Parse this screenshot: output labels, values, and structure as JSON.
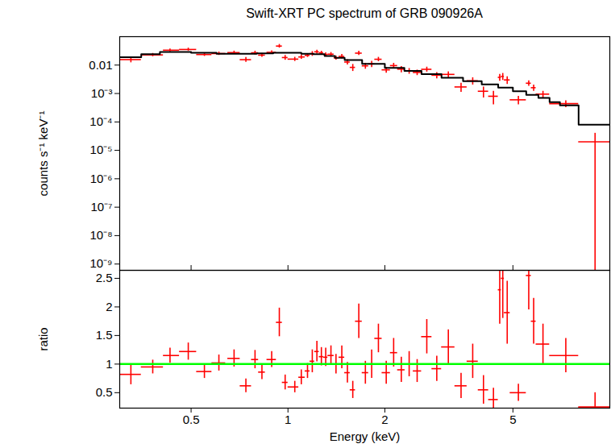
{
  "chart_data": [
    {
      "type": "scatter",
      "title": "Swift-XRT PC spectrum of GRB 090926A",
      "ylabel": "counts s⁻¹ keV⁻¹",
      "log": true,
      "tick_labels": "y",
      "xlim": [
        0.3,
        10
      ],
      "xticks": [
        0.5,
        1,
        2,
        5
      ],
      "ylim": [
        6e-10,
        0.1
      ],
      "yticks": [
        {
          "value": 0.01,
          "label": "0.01"
        },
        {
          "value": 0.001,
          "label": "10⁻³"
        },
        {
          "value": 0.0001,
          "label": "10⁻⁴"
        },
        {
          "value": 1e-05,
          "label": "10⁻⁵"
        },
        {
          "value": 1e-06,
          "label": "10⁻⁶"
        },
        {
          "value": 1e-07,
          "label": "10⁻⁷"
        },
        {
          "value": 1e-08,
          "label": "10⁻⁸"
        },
        {
          "value": 1e-09,
          "label": "10⁻⁹"
        }
      ],
      "series": [
        {
          "type": "scatter",
          "color": "#ff0000",
          "x": [
            0.325,
            0.38,
            0.43,
            0.49,
            0.55,
            0.61,
            0.68,
            0.74,
            0.79,
            0.83,
            0.89,
            0.94,
            0.98,
            1.05,
            1.1,
            1.15,
            1.19,
            1.23,
            1.27,
            1.31,
            1.36,
            1.41,
            1.47,
            1.53,
            1.59,
            1.66,
            1.74,
            1.82,
            1.91,
            2.02,
            2.13,
            2.25,
            2.38,
            2.52,
            2.7,
            2.9,
            3.15,
            3.45,
            3.75,
            4.05,
            4.35,
            4.55,
            4.65,
            4.8,
            5.2,
            5.6,
            5.8,
            6.2,
            7.3,
            9.0
          ],
          "x_low": [
            0.3,
            0.35,
            0.41,
            0.46,
            0.52,
            0.58,
            0.65,
            0.71,
            0.77,
            0.81,
            0.86,
            0.92,
            0.96,
            1.0,
            1.08,
            1.13,
            1.17,
            1.21,
            1.25,
            1.29,
            1.33,
            1.39,
            1.44,
            1.5,
            1.56,
            1.62,
            1.7,
            1.78,
            1.86,
            1.96,
            2.08,
            2.19,
            2.31,
            2.45,
            2.6,
            2.8,
            3.0,
            3.3,
            3.6,
            3.9,
            4.2,
            4.5,
            4.6,
            4.7,
            4.9,
            5.5,
            5.7,
            5.9,
            6.5,
            8.0
          ],
          "x_high": [
            0.35,
            0.41,
            0.46,
            0.52,
            0.58,
            0.64,
            0.71,
            0.77,
            0.81,
            0.85,
            0.92,
            0.96,
            1.0,
            1.08,
            1.13,
            1.17,
            1.21,
            1.25,
            1.29,
            1.33,
            1.39,
            1.44,
            1.5,
            1.56,
            1.62,
            1.7,
            1.78,
            1.86,
            1.96,
            2.08,
            2.19,
            2.31,
            2.45,
            2.6,
            2.8,
            3.0,
            3.3,
            3.6,
            3.9,
            4.2,
            4.5,
            4.6,
            4.7,
            4.9,
            5.5,
            5.7,
            5.9,
            6.5,
            8.0,
            10.0
          ],
          "values": [
            0.0156,
            0.0228,
            0.0334,
            0.0354,
            0.0235,
            0.0255,
            0.0275,
            0.0155,
            0.027,
            0.0224,
            0.0281,
            0.0467,
            0.0184,
            0.0162,
            0.0193,
            0.022,
            0.0252,
            0.0293,
            0.0271,
            0.0235,
            0.0242,
            0.018,
            0.0202,
            0.0128,
            0.0083,
            0.0263,
            0.0094,
            0.011,
            0.016,
            0.0068,
            0.0096,
            0.0072,
            0.0062,
            0.0055,
            0.0071,
            0.0044,
            0.0047,
            0.0017,
            0.0028,
            0.0012,
            0.0008,
            0.0037,
            0.004,
            0.003,
            0.0006,
            0.0023,
            0.0016,
            0.00095,
            0.00044,
            2e-05
          ],
          "errors": [
            0.0035,
            0.003,
            0.0038,
            0.0043,
            0.0032,
            0.0035,
            0.0037,
            0.003,
            0.004,
            0.0034,
            0.0036,
            0.0068,
            0.0035,
            0.0027,
            0.0033,
            0.0033,
            0.0048,
            0.0043,
            0.0038,
            0.0034,
            0.0036,
            0.003,
            0.0036,
            0.0027,
            0.0023,
            0.0045,
            0.0022,
            0.0027,
            0.0028,
            0.0016,
            0.002,
            0.0018,
            0.0014,
            0.0012,
            0.0014,
            0.0011,
            0.0011,
            0.0006,
            0.0008,
            0.0005,
            0.0004,
            0.001,
            0.0011,
            0.0009,
            0.0002,
            0.0005,
            0.0004,
            0.00025,
            0.00012,
            1.99999e-05
          ]
        },
        {
          "type": "line",
          "color": "#000000",
          "line_style": "step",
          "x": [
            0.3,
            0.35,
            0.4,
            0.5,
            0.6,
            0.7,
            0.8,
            0.9,
            1.0,
            1.1,
            1.2,
            1.3,
            1.4,
            1.5,
            1.7,
            2.0,
            2.3,
            2.6,
            3.0,
            3.5,
            4.0,
            4.5,
            5.0,
            5.5,
            6.0,
            6.5,
            7.0,
            8.0,
            10.0
          ],
          "values": [
            0.019,
            0.024,
            0.029,
            0.027,
            0.025,
            0.025,
            0.026,
            0.027,
            0.027,
            0.025,
            0.024,
            0.021,
            0.018,
            0.015,
            0.011,
            0.008,
            0.0062,
            0.0048,
            0.0036,
            0.0027,
            0.0021,
            0.0016,
            0.0012,
            0.0009,
            0.0007,
            0.0005,
            0.00038,
            8e-05,
            8e-05
          ]
        }
      ]
    },
    {
      "type": "scatter",
      "xlabel": "Energy (keV)",
      "ylabel": "ratio",
      "log": "x",
      "xlim": [
        0.3,
        10
      ],
      "xticks": [
        0.5,
        1,
        2,
        5
      ],
      "ylim": [
        0.23,
        2.64
      ],
      "yticks": [
        0.5,
        1,
        1.5,
        2,
        2.5
      ],
      "series": [
        {
          "type": "scatter",
          "color": "#ff0000",
          "x": [
            0.325,
            0.38,
            0.43,
            0.49,
            0.55,
            0.61,
            0.68,
            0.74,
            0.79,
            0.83,
            0.89,
            0.94,
            0.98,
            1.05,
            1.1,
            1.15,
            1.19,
            1.23,
            1.27,
            1.31,
            1.36,
            1.41,
            1.47,
            1.53,
            1.59,
            1.66,
            1.74,
            1.82,
            1.91,
            2.02,
            2.13,
            2.25,
            2.38,
            2.52,
            2.7,
            2.9,
            3.15,
            3.45,
            3.75,
            4.05,
            4.35,
            4.55,
            4.65,
            4.8,
            5.2,
            5.6,
            5.8,
            6.2,
            7.3,
            9.0
          ],
          "x_low": [
            0.3,
            0.35,
            0.41,
            0.46,
            0.52,
            0.58,
            0.65,
            0.71,
            0.77,
            0.81,
            0.86,
            0.92,
            0.96,
            1.0,
            1.08,
            1.13,
            1.17,
            1.21,
            1.25,
            1.29,
            1.33,
            1.39,
            1.44,
            1.5,
            1.56,
            1.62,
            1.7,
            1.78,
            1.86,
            1.96,
            2.08,
            2.19,
            2.31,
            2.45,
            2.6,
            2.8,
            3.0,
            3.3,
            3.6,
            3.9,
            4.2,
            4.5,
            4.6,
            4.7,
            4.9,
            5.5,
            5.7,
            5.9,
            6.5,
            8.0
          ],
          "x_high": [
            0.35,
            0.41,
            0.46,
            0.52,
            0.58,
            0.64,
            0.71,
            0.77,
            0.81,
            0.85,
            0.92,
            0.96,
            1.0,
            1.08,
            1.13,
            1.17,
            1.21,
            1.25,
            1.29,
            1.33,
            1.39,
            1.44,
            1.5,
            1.56,
            1.62,
            1.7,
            1.78,
            1.86,
            1.96,
            2.08,
            2.19,
            2.31,
            2.45,
            2.6,
            2.8,
            3.0,
            3.3,
            3.6,
            3.9,
            4.2,
            4.5,
            4.6,
            4.7,
            4.9,
            5.5,
            5.7,
            5.9,
            6.5,
            8.0,
            10.0
          ],
          "values": [
            0.82,
            0.95,
            1.15,
            1.22,
            0.87,
            1.02,
            1.1,
            0.62,
            1.08,
            0.86,
            1.08,
            1.73,
            0.68,
            0.6,
            0.77,
            0.88,
            1.05,
            1.22,
            1.13,
            1.12,
            1.15,
            1.0,
            1.12,
            0.85,
            0.55,
            1.75,
            0.85,
            1.0,
            1.45,
            0.85,
            1.2,
            0.9,
            1.0,
            0.88,
            1.48,
            0.92,
            1.3,
            0.62,
            1.05,
            0.55,
            0.38,
            2.3,
            2.5,
            1.9,
            0.5,
            2.55,
            1.75,
            1.35,
            1.15,
            0.25
          ],
          "errors": [
            0.18,
            0.12,
            0.13,
            0.15,
            0.12,
            0.14,
            0.15,
            0.12,
            0.16,
            0.13,
            0.14,
            0.25,
            0.13,
            0.1,
            0.13,
            0.13,
            0.2,
            0.18,
            0.16,
            0.16,
            0.17,
            0.17,
            0.2,
            0.18,
            0.15,
            0.3,
            0.2,
            0.25,
            0.25,
            0.2,
            0.25,
            0.22,
            0.22,
            0.2,
            0.3,
            0.22,
            0.3,
            0.22,
            0.3,
            0.25,
            0.2,
            0.6,
            0.7,
            0.55,
            0.15,
            0.6,
            0.4,
            0.35,
            0.3,
            0.25
          ]
        },
        {
          "type": "line",
          "color": "#00ff00",
          "x": [
            0.3,
            10
          ],
          "values": [
            1,
            1
          ]
        }
      ]
    }
  ]
}
